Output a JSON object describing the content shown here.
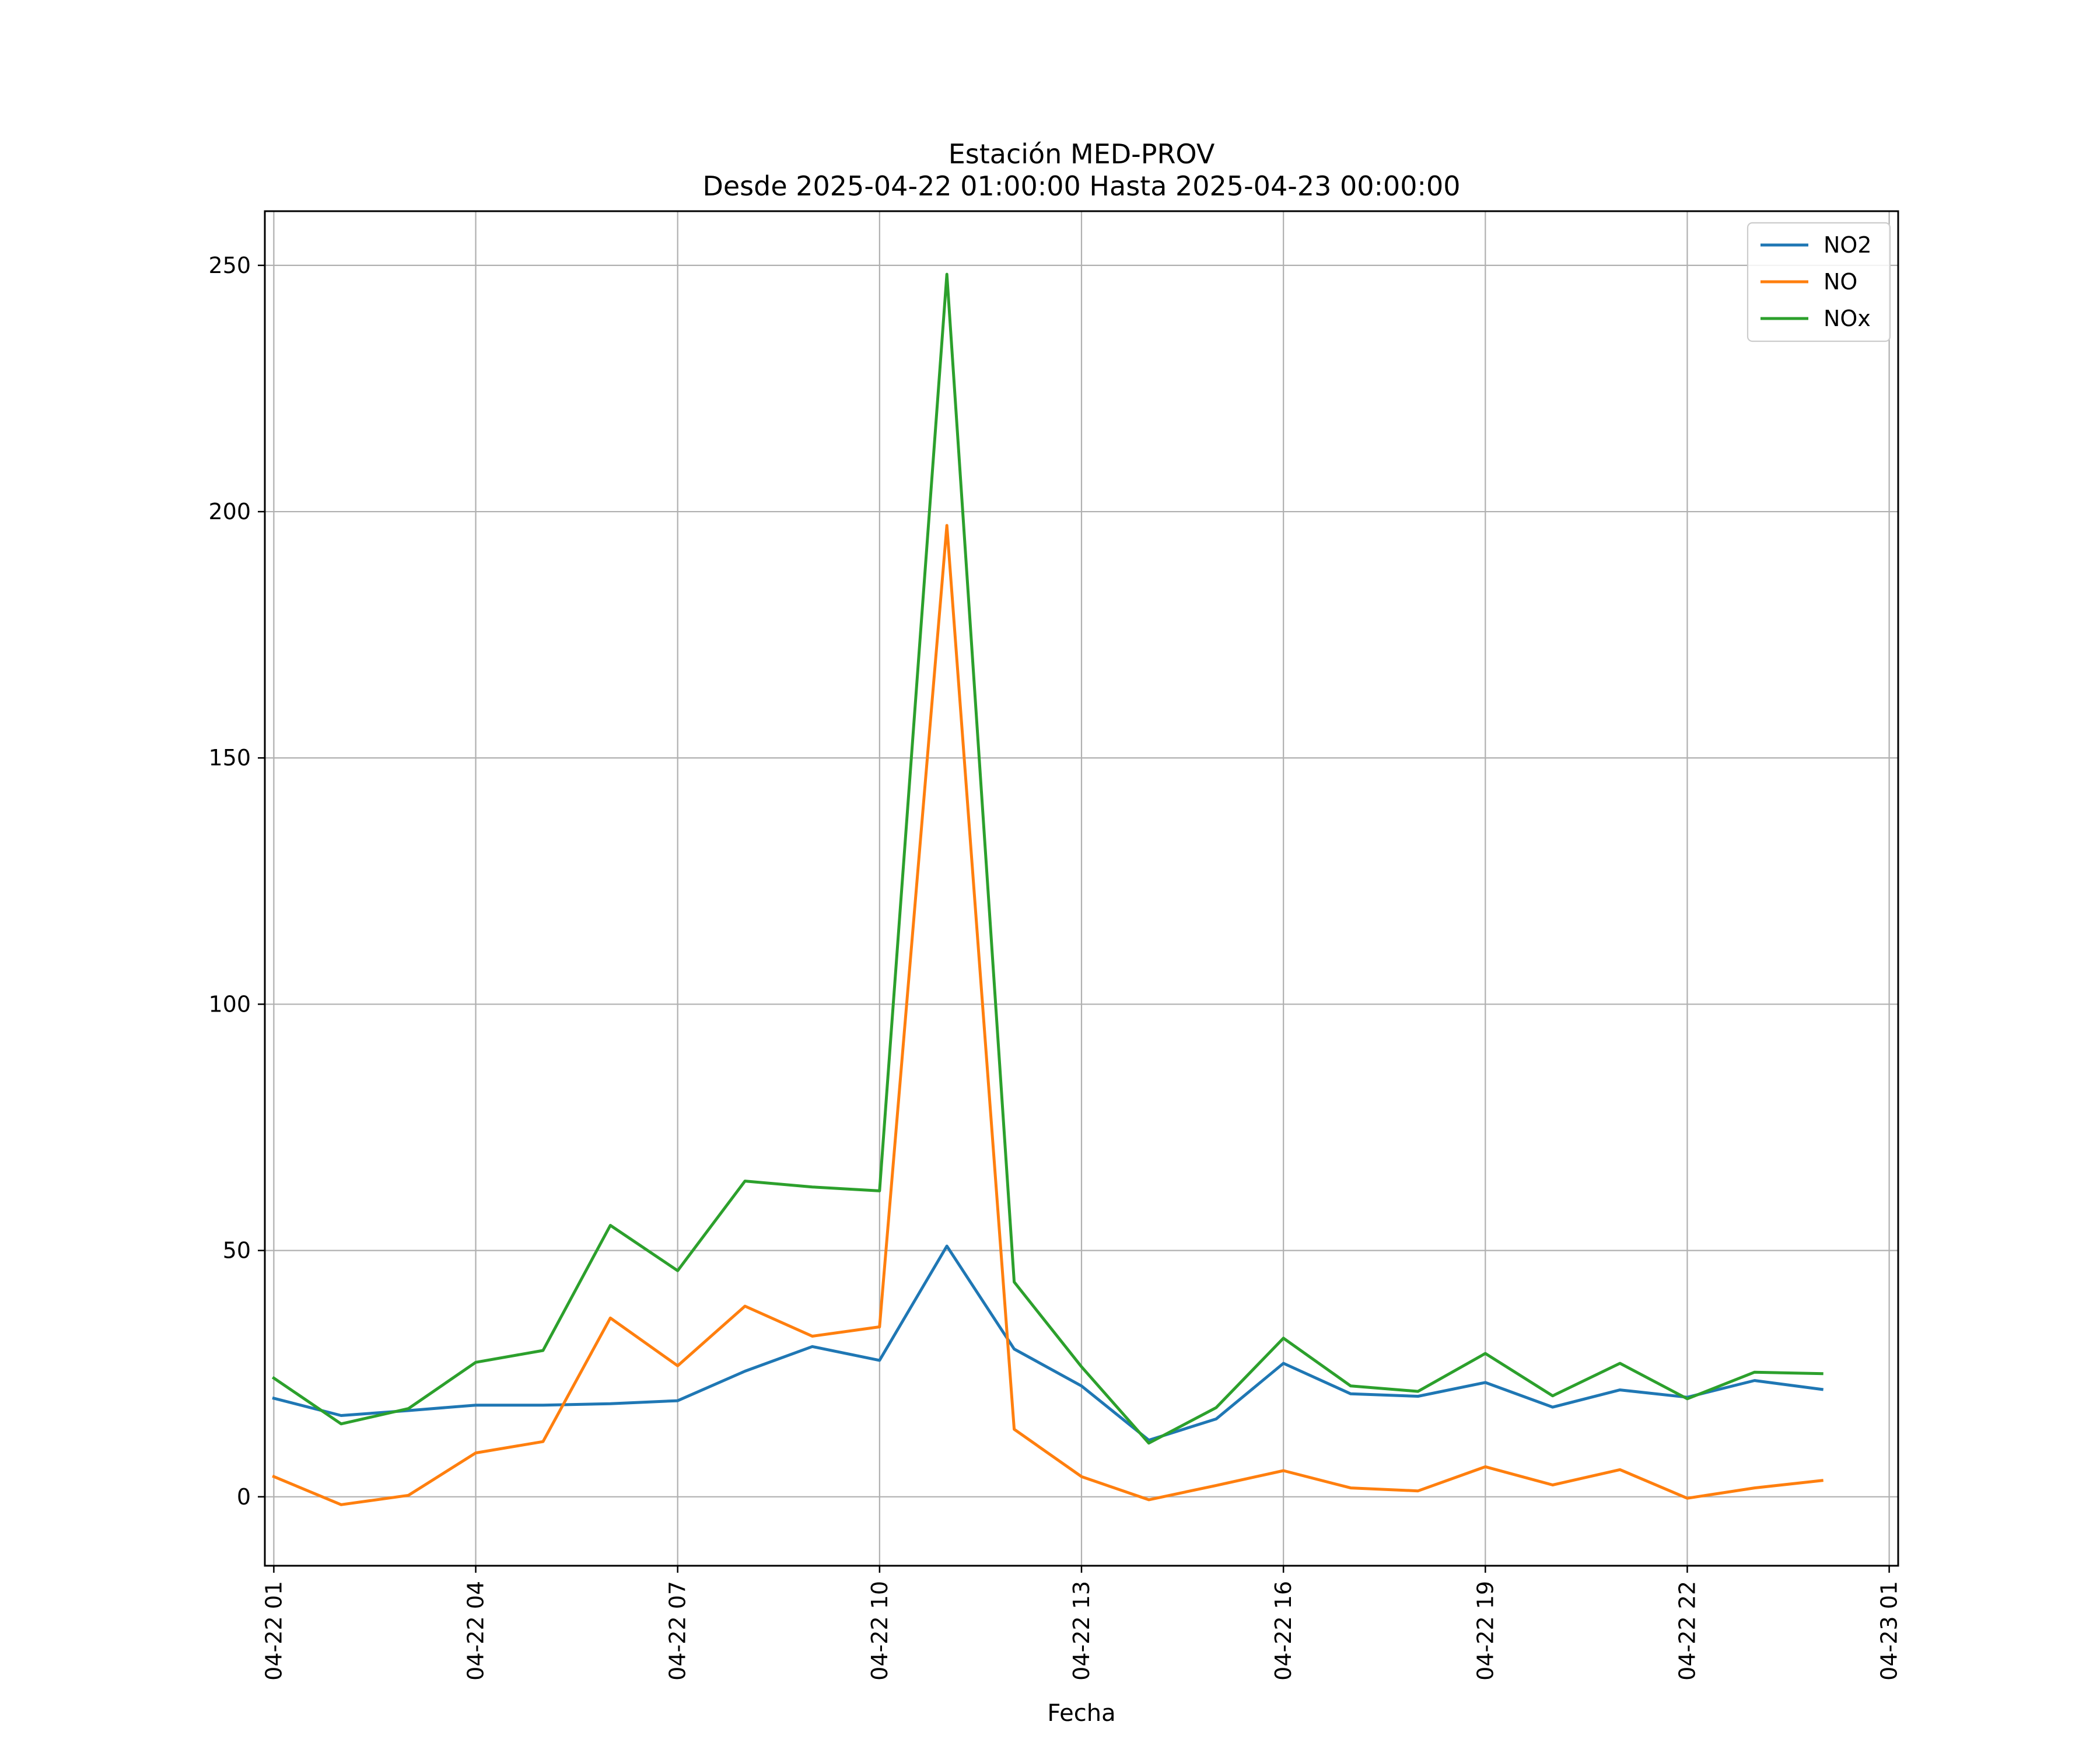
{
  "chart_data": {
    "type": "line",
    "title": "Estación MED-PROV",
    "subtitle": "Desde 2025-04-22 01:00:00 Hasta 2025-04-23 00:00:00",
    "xlabel": "Fecha",
    "ylabel": "",
    "x": [
      "04-22 01",
      "04-22 02",
      "04-22 03",
      "04-22 04",
      "04-22 05",
      "04-22 06",
      "04-22 07",
      "04-22 08",
      "04-22 09",
      "04-22 10",
      "04-22 11",
      "04-22 12",
      "04-22 13",
      "04-22 14",
      "04-22 15",
      "04-22 16",
      "04-22 17",
      "04-22 18",
      "04-22 19",
      "04-22 20",
      "04-22 21",
      "04-22 22",
      "04-22 23",
      "04-23 00"
    ],
    "xticks": [
      "04-22 01",
      "04-22 04",
      "04-22 07",
      "04-22 10",
      "04-22 13",
      "04-22 16",
      "04-22 19",
      "04-22 22",
      "04-23 01"
    ],
    "yticks": [
      0,
      50,
      100,
      150,
      200,
      250
    ],
    "xlim": [
      "04-22 00:52",
      "04-23 01:08"
    ],
    "ylim": [
      -14,
      261
    ],
    "grid": true,
    "legend": "top-right",
    "series": [
      {
        "name": "NO2",
        "color": "#1f77b4",
        "values": [
          20.0,
          16.5,
          17.5,
          18.6,
          18.6,
          18.9,
          19.5,
          25.5,
          30.5,
          27.7,
          50.9,
          30.0,
          22.5,
          11.5,
          15.8,
          27.1,
          20.9,
          20.4,
          23.2,
          18.2,
          21.7,
          20.2,
          23.6,
          21.8
        ]
      },
      {
        "name": "NO",
        "color": "#ff7f0e",
        "values": [
          4.1,
          -1.6,
          0.3,
          8.9,
          11.2,
          36.3,
          26.6,
          38.7,
          32.6,
          34.5,
          197.2,
          13.7,
          4.1,
          -0.6,
          2.3,
          5.3,
          1.8,
          1.2,
          6.1,
          2.4,
          5.5,
          -0.3,
          1.8,
          3.3
        ]
      },
      {
        "name": "NOx",
        "color": "#2ca02c",
        "values": [
          24.1,
          14.8,
          17.9,
          27.3,
          29.7,
          55.1,
          45.9,
          64.1,
          62.9,
          62.1,
          248.2,
          43.6,
          26.4,
          10.9,
          18.1,
          32.2,
          22.5,
          21.4,
          29.1,
          20.5,
          27.1,
          19.9,
          25.3,
          25.0
        ]
      }
    ]
  }
}
